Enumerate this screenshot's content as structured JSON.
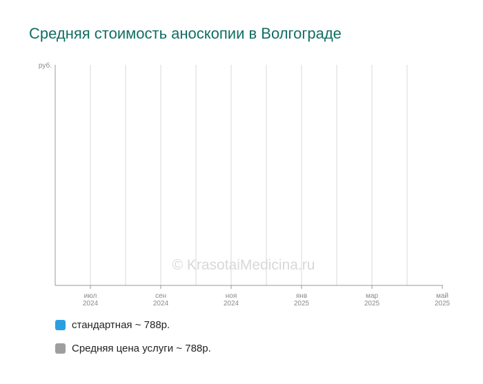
{
  "title": "Средняя стоимость аноскопии в Волгограде",
  "watermark": "© KrasotaiMedicina.ru",
  "chart_data": {
    "type": "line",
    "title": "Средняя стоимость аноскопии в Волгограде",
    "ylabel": "руб.",
    "xlabel": "",
    "x_ticks": [
      {
        "month": "июл",
        "year": "2024"
      },
      {
        "month": "сен",
        "year": "2024"
      },
      {
        "month": "ноя",
        "year": "2024"
      },
      {
        "month": "янв",
        "year": "2025"
      },
      {
        "month": "мар",
        "year": "2025"
      },
      {
        "month": "май",
        "year": "2025"
      }
    ],
    "grid": true,
    "legend_position": "bottom-left",
    "series": [
      {
        "name": "стандартная ~ 788р.",
        "color": "#2a9fe0",
        "values": []
      },
      {
        "name": "Средняя цена услуги ~ 788р.",
        "color": "#9e9e9e",
        "values": []
      }
    ]
  },
  "colors": {
    "title": "#0f6e63",
    "axis": "#999999",
    "grid": "#d9d9d9",
    "tick_text": "#888888"
  }
}
